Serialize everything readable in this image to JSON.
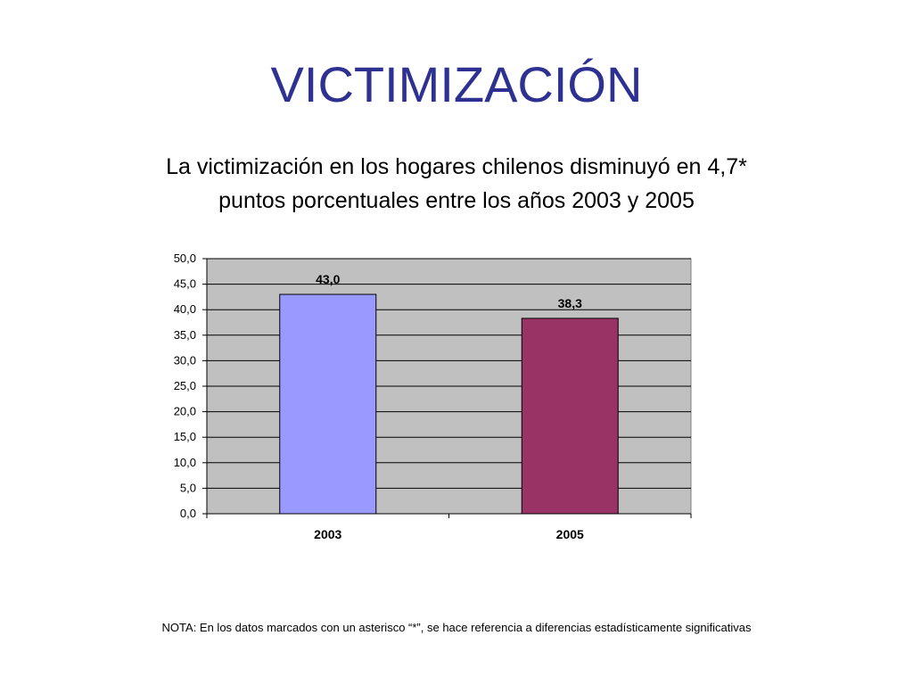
{
  "title": "VICTIMIZACIÓN",
  "subtitle": {
    "line1": "La victimización en los hogares chilenos disminuyó en 4,7*",
    "line2": "puntos porcentuales entre los años 2003 y 2005"
  },
  "note": "NOTA:  En los datos marcados con un asterisco “*”, se hace referencia a diferencias estadísticamente significativas",
  "colors": {
    "title": "#2e3192",
    "plot_background": "#c0c0c0",
    "bar_2003": "#9999ff",
    "bar_2005": "#993366"
  },
  "chart_data": {
    "type": "bar",
    "categories": [
      "2003",
      "2005"
    ],
    "values": [
      43.0,
      38.3
    ],
    "data_labels": [
      "43,0",
      "38,3"
    ],
    "ylim": [
      0,
      50
    ],
    "ytick_labels": [
      "0,0",
      "5,0",
      "10,0",
      "15,0",
      "20,0",
      "25,0",
      "30,0",
      "35,0",
      "40,0",
      "45,0",
      "50,0"
    ],
    "grid": true,
    "legend": "none"
  }
}
